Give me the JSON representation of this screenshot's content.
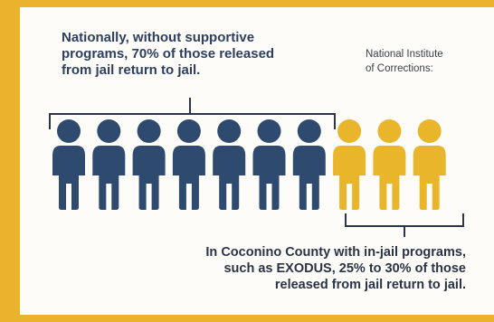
{
  "top_text_lines": [
    "Nationally, without supportive",
    "programs, 70% of those released",
    "from jail return to jail."
  ],
  "source_lines": [
    "National Institute",
    "of Corrections:"
  ],
  "bottom_text_lines": [
    "In Coconino County with in-jail  programs,",
    "such as EXODUS, 25% to 30% of those",
    "released from jail return to jail."
  ],
  "figures": {
    "total": 10,
    "highlight_national": 7,
    "highlight_local": 3,
    "navy_color": "#2f4a6f",
    "gold_color": "#e9b52a"
  },
  "colors": {
    "border": "#ebb22c",
    "panel": "#fdfcf8",
    "bracket": "#2b3448"
  }
}
